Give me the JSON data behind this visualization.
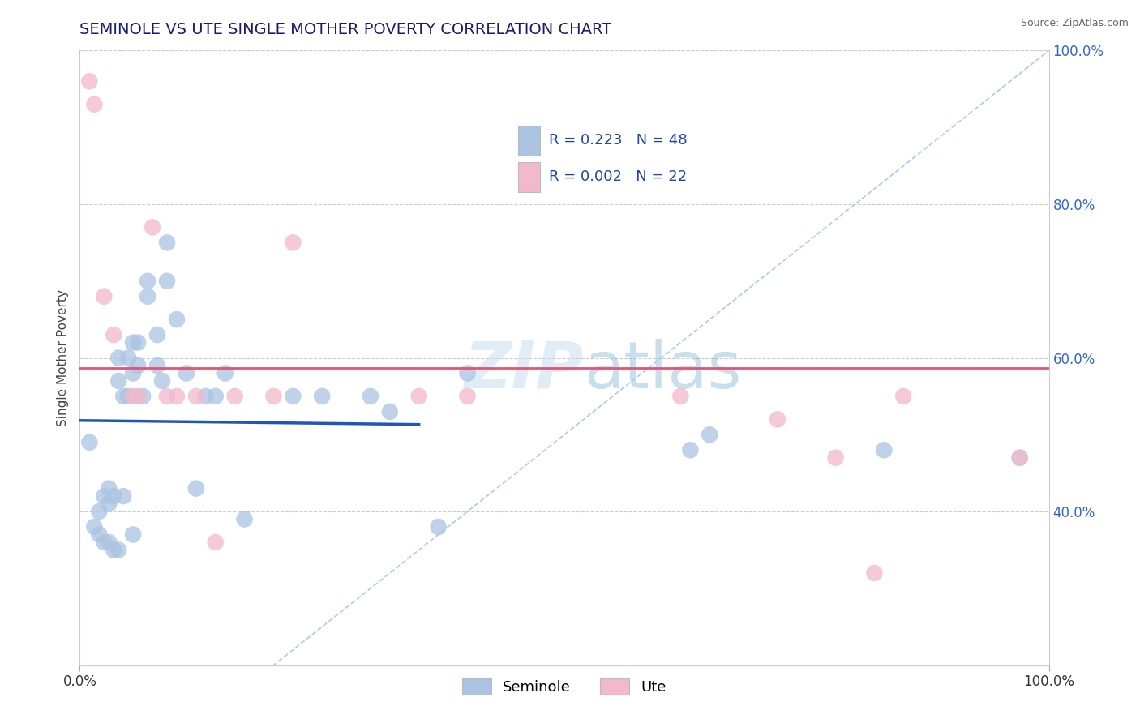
{
  "title": "SEMINOLE VS UTE SINGLE MOTHER POVERTY CORRELATION CHART",
  "source": "Source: ZipAtlas.com",
  "ylabel": "Single Mother Poverty",
  "legend_label1": "Seminole",
  "legend_label2": "Ute",
  "R_seminole": "0.223",
  "N_seminole": "48",
  "R_ute": "0.002",
  "N_ute": "22",
  "seminole_color": "#aac4e2",
  "seminole_line_color": "#2255bb",
  "ute_color": "#f2b8cb",
  "ute_line_color": "#e05577",
  "background_color": "#ffffff",
  "grid_color": "#cccccc",
  "title_color": "#1a1a6e",
  "ytick_color": "#3366cc",
  "seminole_x": [
    0.01,
    0.015,
    0.02,
    0.02,
    0.025,
    0.025,
    0.03,
    0.03,
    0.03,
    0.035,
    0.035,
    0.04,
    0.04,
    0.04,
    0.045,
    0.045,
    0.05,
    0.05,
    0.055,
    0.055,
    0.055,
    0.06,
    0.06,
    0.065,
    0.07,
    0.07,
    0.08,
    0.08,
    0.085,
    0.09,
    0.09,
    0.1,
    0.11,
    0.12,
    0.13,
    0.14,
    0.15,
    0.17,
    0.22,
    0.25,
    0.3,
    0.32,
    0.37,
    0.4,
    0.63,
    0.65,
    0.83,
    0.97
  ],
  "seminole_y": [
    0.49,
    0.38,
    0.37,
    0.4,
    0.42,
    0.36,
    0.41,
    0.43,
    0.36,
    0.35,
    0.42,
    0.6,
    0.57,
    0.35,
    0.55,
    0.42,
    0.6,
    0.55,
    0.62,
    0.58,
    0.37,
    0.62,
    0.59,
    0.55,
    0.7,
    0.68,
    0.63,
    0.59,
    0.57,
    0.75,
    0.7,
    0.65,
    0.58,
    0.43,
    0.55,
    0.55,
    0.58,
    0.39,
    0.55,
    0.55,
    0.55,
    0.53,
    0.38,
    0.58,
    0.48,
    0.5,
    0.48,
    0.47
  ],
  "ute_x": [
    0.01,
    0.015,
    0.025,
    0.035,
    0.055,
    0.06,
    0.075,
    0.09,
    0.1,
    0.12,
    0.14,
    0.16,
    0.2,
    0.22,
    0.35,
    0.4,
    0.62,
    0.72,
    0.78,
    0.82,
    0.85,
    0.97
  ],
  "ute_y": [
    0.96,
    0.93,
    0.68,
    0.63,
    0.55,
    0.55,
    0.77,
    0.55,
    0.55,
    0.55,
    0.36,
    0.55,
    0.55,
    0.75,
    0.55,
    0.55,
    0.55,
    0.52,
    0.47,
    0.32,
    0.55,
    0.47
  ],
  "xlim": [
    0.0,
    1.0
  ],
  "ylim": [
    0.2,
    1.0
  ],
  "yticks": [
    0.4,
    0.6,
    0.8,
    1.0
  ],
  "ytick_labels": [
    "40.0%",
    "60.0%",
    "80.0%",
    "100.0%"
  ],
  "xticks": [
    0.0,
    1.0
  ],
  "xtick_labels": [
    "0.0%",
    "100.0%"
  ],
  "title_fontsize": 14,
  "axis_label_fontsize": 11,
  "tick_fontsize": 12,
  "source_fontsize": 9
}
